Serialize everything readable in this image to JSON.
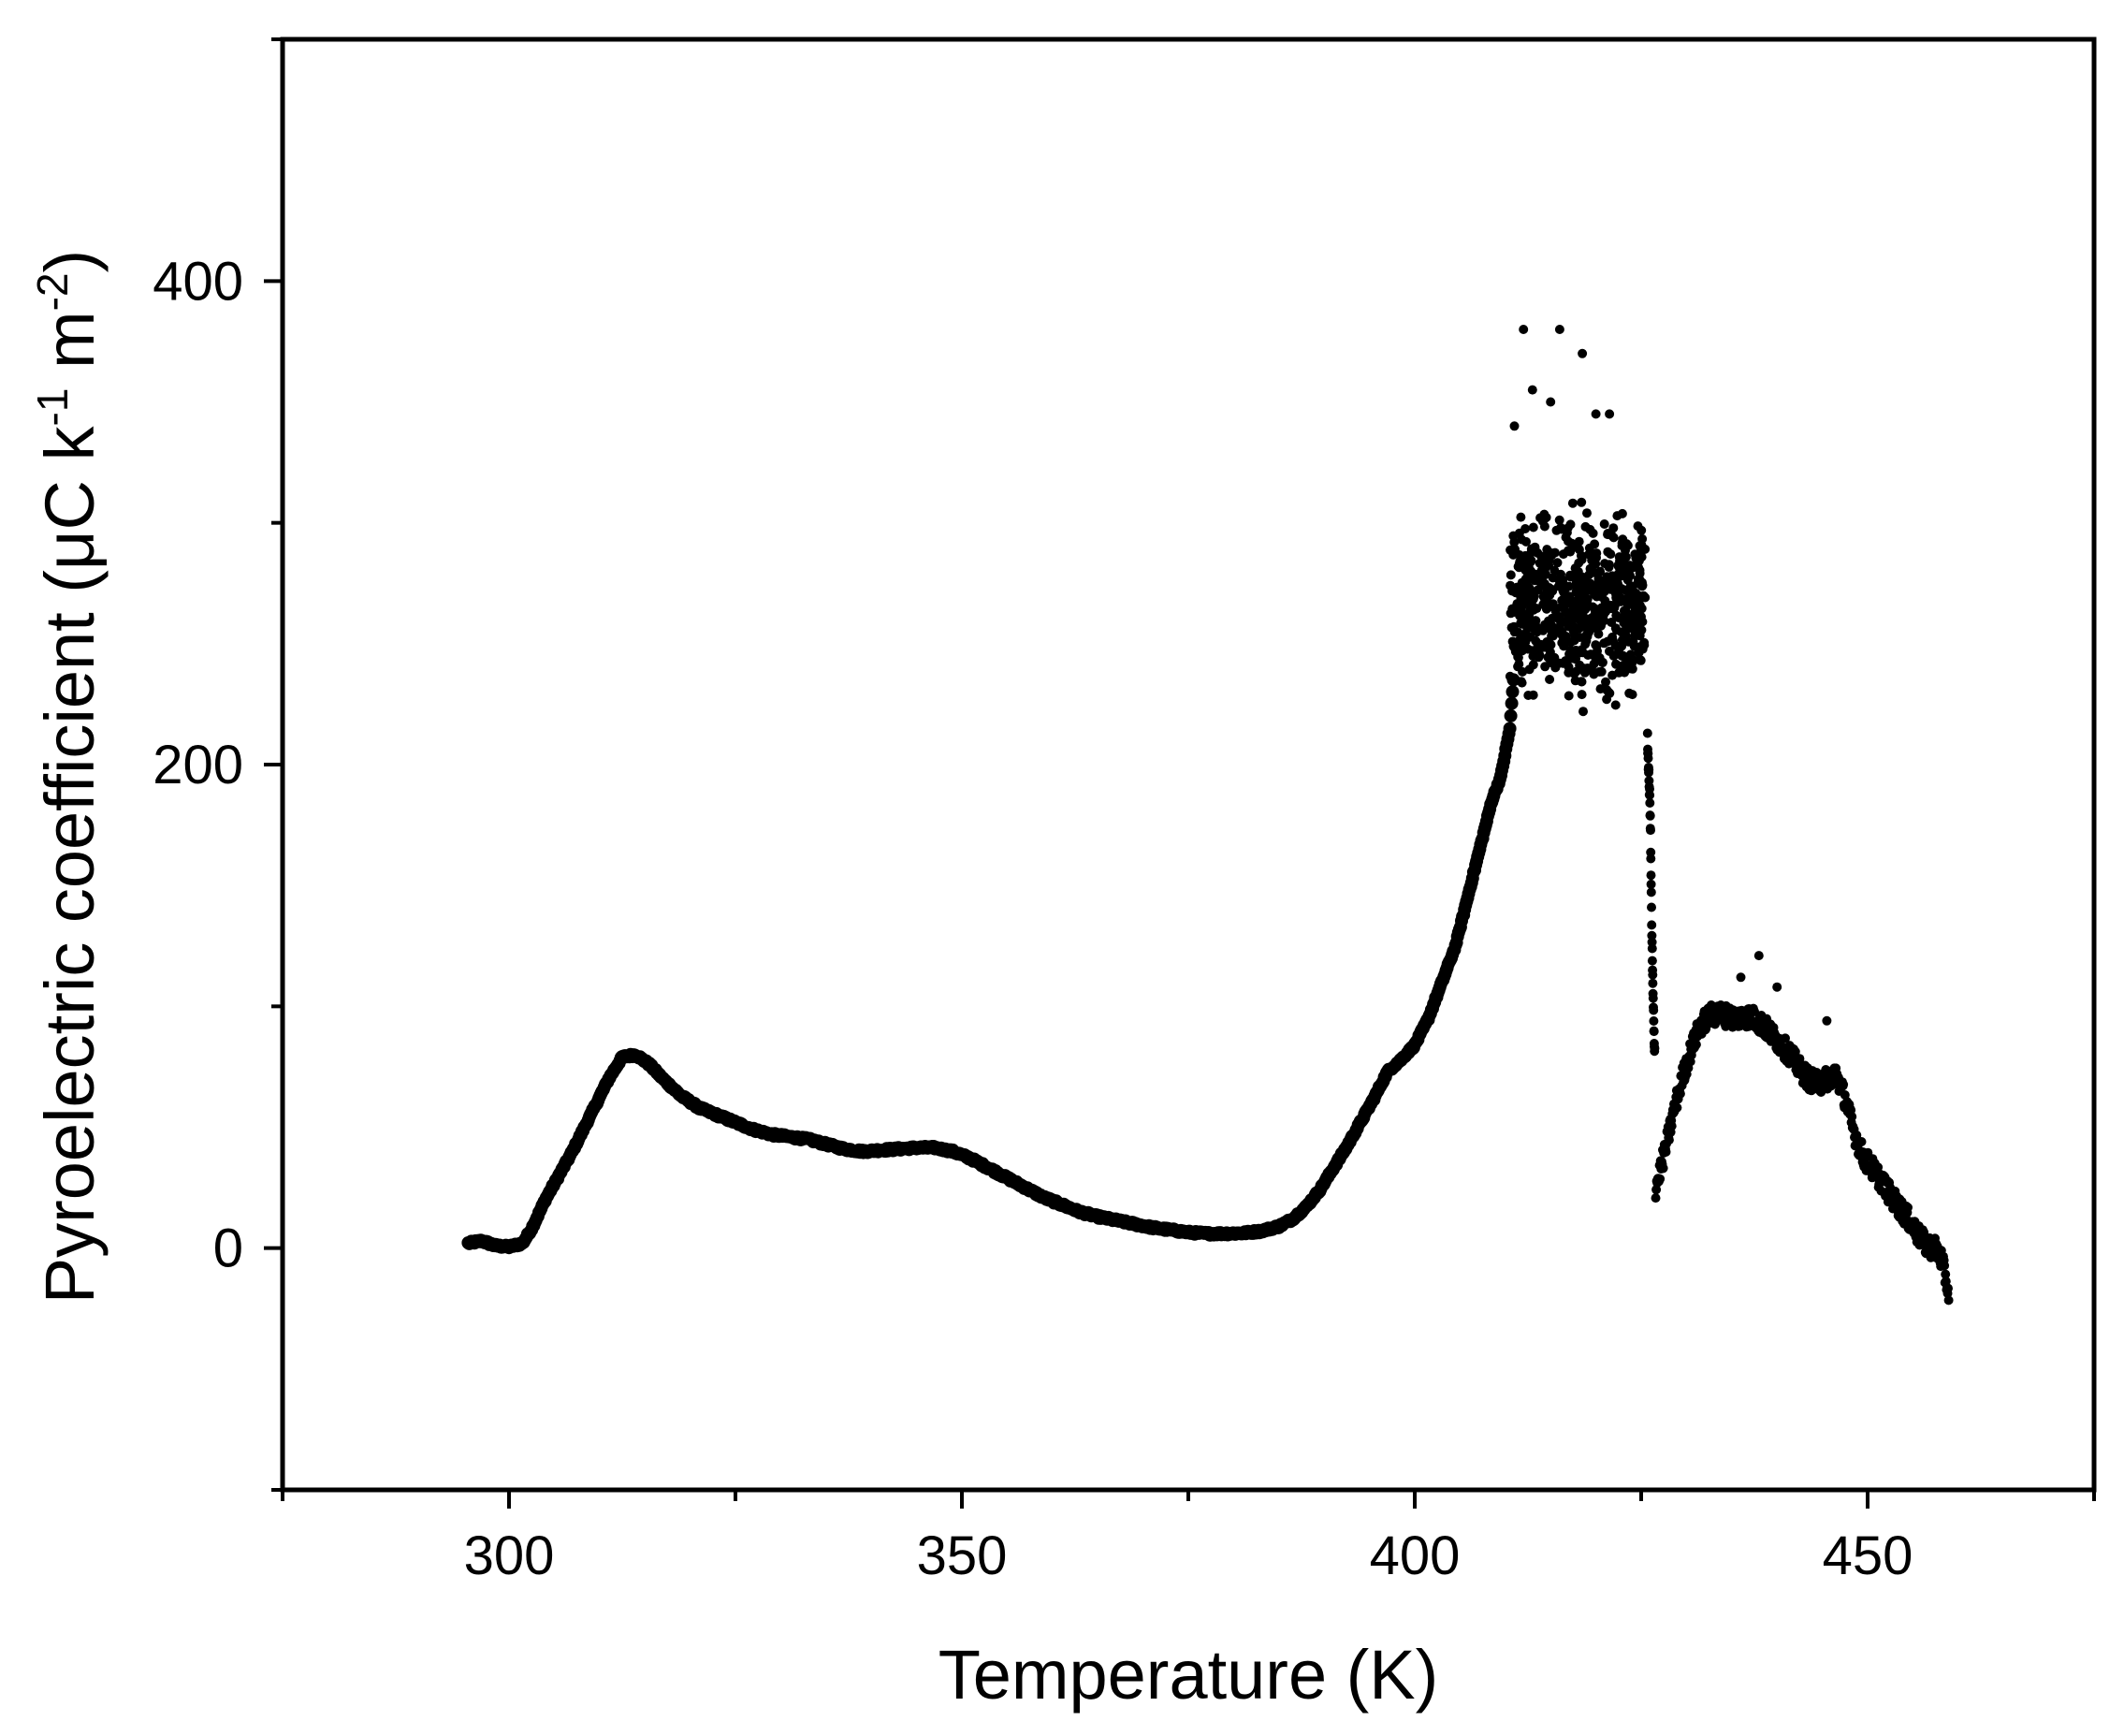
{
  "chart_data": {
    "type": "scatter",
    "title": "",
    "xlabel": "Temperature (K)",
    "ylabel_parts": {
      "base": "Pyroelectric coefficient (μC k",
      "sup1": "-1",
      "mid": " m",
      "sup2": "-2",
      "end": ")"
    },
    "xlim": [
      275,
      475
    ],
    "ylim": [
      -100,
      500
    ],
    "x_ticks": [
      300,
      350,
      400,
      450
    ],
    "x_minor_ticks": [
      275,
      325,
      375,
      425,
      475
    ],
    "y_ticks": [
      0,
      200,
      400
    ],
    "y_minor_ticks": [
      -100,
      100,
      300,
      500
    ],
    "grid": false,
    "legend": "none",
    "marker_color": "#000000",
    "series": [
      {
        "curve": [
          [
            295.5,
            2
          ],
          [
            297,
            3
          ],
          [
            298.5,
            1
          ],
          [
            300,
            0.5
          ],
          [
            301.5,
            2
          ],
          [
            302.5,
            8
          ],
          [
            304,
            20
          ],
          [
            305.5,
            30
          ],
          [
            307,
            40
          ],
          [
            309,
            55
          ],
          [
            311,
            70
          ],
          [
            312.5,
            79
          ],
          [
            314,
            80
          ],
          [
            315.5,
            76
          ],
          [
            317,
            70
          ],
          [
            319,
            63
          ],
          [
            321,
            58
          ],
          [
            323,
            55
          ],
          [
            325,
            52
          ],
          [
            327,
            49
          ],
          [
            329,
            47
          ],
          [
            331,
            46
          ],
          [
            333,
            45
          ],
          [
            335,
            43
          ],
          [
            337,
            41
          ],
          [
            339,
            40
          ],
          [
            341,
            40.5
          ],
          [
            343,
            41
          ],
          [
            345,
            41.5
          ],
          [
            347,
            41.5
          ],
          [
            349,
            40
          ],
          [
            351,
            37
          ],
          [
            353,
            33
          ],
          [
            355,
            29
          ],
          [
            357,
            25
          ],
          [
            359,
            21
          ],
          [
            361,
            18
          ],
          [
            363,
            15
          ],
          [
            365,
            13
          ],
          [
            367,
            11.5
          ],
          [
            369,
            10
          ],
          [
            371,
            8.5
          ],
          [
            373,
            7.5
          ],
          [
            375,
            6.5
          ],
          [
            377,
            6
          ],
          [
            379,
            6
          ],
          [
            381,
            6.2
          ],
          [
            383,
            7
          ],
          [
            385,
            9
          ],
          [
            386.5,
            12
          ],
          [
            388,
            17
          ],
          [
            389.5,
            24
          ],
          [
            391,
            33
          ],
          [
            392.5,
            42
          ],
          [
            394,
            52
          ],
          [
            395.5,
            62
          ],
          [
            397,
            73
          ],
          [
            398.5,
            78
          ],
          [
            400,
            84
          ],
          [
            401.5,
            95
          ],
          [
            403,
            110
          ],
          [
            404.5,
            125
          ],
          [
            405.5,
            140
          ],
          [
            406.5,
            155
          ],
          [
            407.5,
            170
          ],
          [
            408.5,
            185
          ],
          [
            409.5,
            195
          ],
          [
            410.5,
            215
          ],
          [
            411,
            240
          ]
        ],
        "noisy_plateau": {
          "x_range": [
            410.5,
            425.5
          ],
          "center": 265,
          "spread": 50,
          "outliers_high": [
            [
              412,
              380
            ],
            [
              416,
              380
            ],
            [
              418.5,
              370
            ],
            [
              413,
              355
            ],
            [
              415,
              350
            ],
            [
              420,
              345
            ],
            [
              421.5,
              345
            ],
            [
              411,
              340
            ]
          ]
        },
        "drop": [
          [
            425.7,
            210
          ],
          [
            426,
            180
          ],
          [
            426.1,
            150
          ],
          [
            426.2,
            125
          ],
          [
            426.3,
            105
          ],
          [
            426.4,
            90
          ],
          [
            426.5,
            80
          ]
        ],
        "second_hump": [
          [
            426.6,
            25
          ],
          [
            427.5,
            38
          ],
          [
            428.5,
            55
          ],
          [
            429.5,
            70
          ],
          [
            430.5,
            82
          ],
          [
            431.5,
            92
          ],
          [
            432.5,
            96
          ],
          [
            433.5,
            97
          ],
          [
            434.5,
            96
          ],
          [
            435.5,
            95
          ],
          [
            436.5,
            96
          ],
          [
            437.5,
            95
          ],
          [
            438.5,
            92
          ],
          [
            439.5,
            88
          ],
          [
            440.5,
            84
          ],
          [
            441.5,
            80
          ],
          [
            442.5,
            74
          ],
          [
            443.5,
            70
          ],
          [
            444.5,
            68
          ],
          [
            445.5,
            70
          ],
          [
            446.5,
            72
          ],
          [
            447.5,
            62
          ],
          [
            448.5,
            48
          ],
          [
            449.5,
            38
          ],
          [
            450.5,
            33
          ],
          [
            451.5,
            28
          ],
          [
            452.5,
            22
          ],
          [
            453.5,
            17
          ],
          [
            454.5,
            12
          ],
          [
            455.5,
            6
          ],
          [
            456.5,
            1
          ],
          [
            457.5,
            0
          ],
          [
            458.2,
            -5
          ],
          [
            458.6,
            -12
          ],
          [
            459,
            -20
          ]
        ],
        "hump_outliers": [
          [
            438,
            121
          ],
          [
            445.5,
            94
          ],
          [
            440,
            108
          ],
          [
            436,
            112
          ]
        ]
      }
    ]
  }
}
